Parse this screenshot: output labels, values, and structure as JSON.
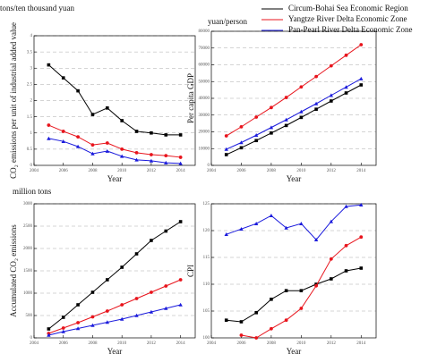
{
  "chart_data": [
    {
      "type": "line",
      "unit_label": "tons/ten thousand yuan",
      "ylabel": "CO₂ emissions per unit of industrial added value",
      "xlabel": "Year",
      "x": [
        2005,
        2006,
        2007,
        2008,
        2009,
        2010,
        2011,
        2012,
        2013,
        2014
      ],
      "series": [
        {
          "color": "#000000",
          "values": [
            3.1,
            2.7,
            2.3,
            1.57,
            1.77,
            1.38,
            1.05,
            1.0,
            0.94,
            0.94
          ]
        },
        {
          "color": "#e8141c",
          "values": [
            1.24,
            1.05,
            0.88,
            0.63,
            0.69,
            0.5,
            0.39,
            0.33,
            0.3,
            0.25
          ]
        },
        {
          "color": "#1a1adc",
          "values": [
            0.83,
            0.74,
            0.58,
            0.36,
            0.44,
            0.28,
            0.17,
            0.14,
            0.08,
            0.06
          ]
        }
      ],
      "xlim": [
        2004,
        2015
      ],
      "xticks": [
        2004,
        2006,
        2008,
        2010,
        2012,
        2014
      ],
      "ylim": [
        0,
        4
      ],
      "yticks": [
        0,
        0.5,
        1,
        1.5,
        2,
        2.5,
        3,
        3.5,
        4
      ],
      "grid": true
    },
    {
      "type": "line",
      "unit_label": "yuan/person",
      "ylabel": "Per capita GDP",
      "xlabel": "Year",
      "x": [
        2005,
        2006,
        2007,
        2008,
        2009,
        2010,
        2011,
        2012,
        2013,
        2014
      ],
      "series": [
        {
          "name": "Circum-Bohai Sea Economic Region",
          "color": "#000000",
          "values": [
            6400,
            10500,
            14800,
            19300,
            23800,
            28600,
            33500,
            38400,
            43200,
            48000
          ]
        },
        {
          "name": "Yangtze River Delta Economic Zone",
          "color": "#e8141c",
          "values": [
            17600,
            23000,
            28800,
            34500,
            40500,
            46800,
            53000,
            59400,
            65700,
            72000
          ]
        },
        {
          "name": "Pan-Pearl River Delta Economic Zone",
          "color": "#1a1adc",
          "values": [
            9600,
            13600,
            18000,
            22600,
            27200,
            32000,
            36800,
            41800,
            46700,
            51700
          ]
        }
      ],
      "legend": "upper left",
      "xlim": [
        2004,
        2015
      ],
      "xticks": [
        2004,
        2006,
        2008,
        2010,
        2012,
        2014
      ],
      "ylim": [
        0,
        80000
      ],
      "yticks": [
        0,
        10000,
        20000,
        30000,
        40000,
        50000,
        60000,
        70000,
        80000
      ],
      "grid": true
    },
    {
      "type": "line",
      "unit_label": "million tons",
      "ylabel": "Accumulated CO₂ emissions",
      "xlabel": "Year",
      "x": [
        2005,
        2006,
        2007,
        2008,
        2009,
        2010,
        2011,
        2012,
        2013,
        2014
      ],
      "series": [
        {
          "color": "#000000",
          "values": [
            200,
            460,
            740,
            1020,
            1300,
            1580,
            1880,
            2180,
            2390,
            2600
          ]
        },
        {
          "color": "#e8141c",
          "values": [
            100,
            220,
            340,
            470,
            600,
            740,
            880,
            1020,
            1160,
            1300
          ]
        },
        {
          "color": "#1a1adc",
          "values": [
            60,
            140,
            210,
            280,
            350,
            420,
            500,
            580,
            660,
            740
          ]
        }
      ],
      "xlim": [
        2004,
        2015
      ],
      "xticks": [
        2004,
        2006,
        2008,
        2010,
        2012,
        2014
      ],
      "ylim": [
        0,
        3000
      ],
      "yticks": [
        0,
        500,
        1000,
        1500,
        2000,
        2500,
        3000
      ],
      "grid": true
    },
    {
      "type": "line",
      "ylabel": "CPI",
      "xlabel": "Year",
      "x": [
        2005,
        2006,
        2007,
        2008,
        2009,
        2010,
        2011,
        2012,
        2013,
        2014
      ],
      "series": [
        {
          "color": "#000000",
          "values": [
            103.3,
            103,
            104.7,
            107.2,
            108.8,
            108.8,
            110,
            111,
            112.5,
            113
          ]
        },
        {
          "color": "#e8141c",
          "values": [
            null,
            100.5,
            100,
            101.7,
            103.3,
            105.5,
            109.7,
            114.7,
            117.2,
            118.8
          ]
        },
        {
          "color": "#1a1adc",
          "values": [
            119.3,
            120.3,
            121.3,
            122.8,
            120.5,
            121.3,
            118.3,
            121.7,
            124.5,
            124.8
          ]
        }
      ],
      "xlim": [
        2004,
        2015
      ],
      "xticks": [
        2004,
        2006,
        2008,
        2010,
        2012,
        2014
      ],
      "ylim": [
        100,
        125
      ],
      "yticks": [
        100,
        105,
        110,
        115,
        120,
        125
      ],
      "grid": true
    }
  ]
}
